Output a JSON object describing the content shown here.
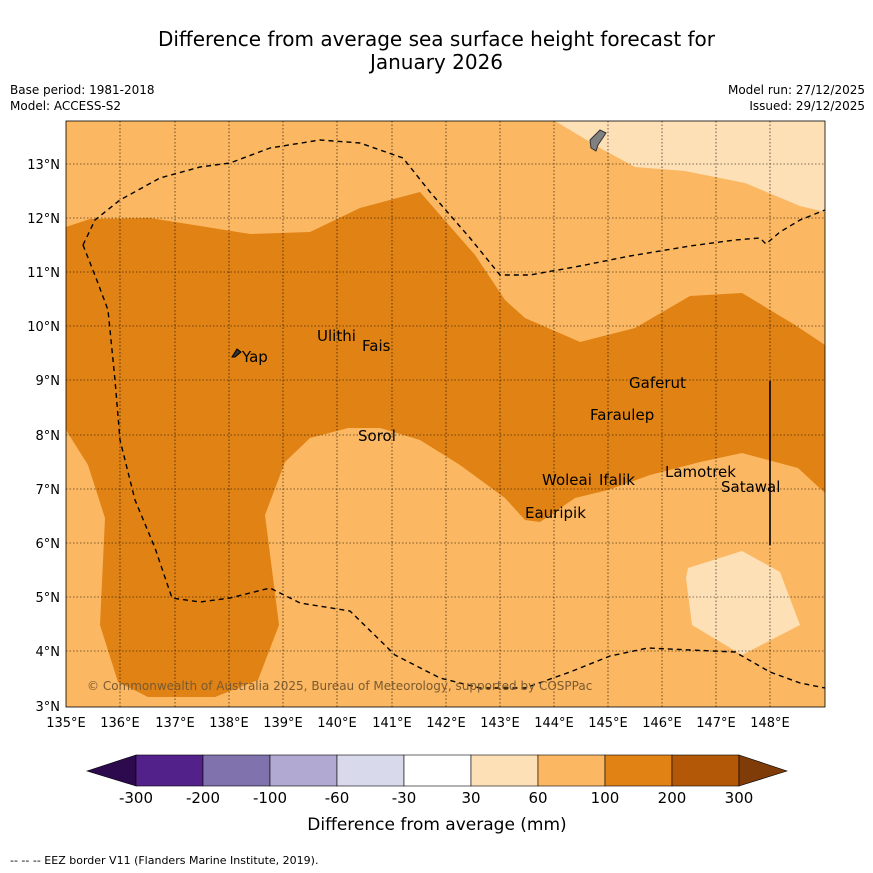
{
  "title_line1": "Difference from average sea surface height forecast for",
  "title_line2": "January 2026",
  "base_period": "Base period: 1981-2018",
  "model": "Model: ACCESS-S2",
  "model_run": "Model run: 27/12/2025",
  "issued": "Issued: 29/12/2025",
  "copyright": "© Commonwealth of Australia 2025, Bureau of Meteorology, supported by COSPPac",
  "footnote": "--  --  -- EEZ border V11 (Flanders Marine Institute, 2019).",
  "lat_labels": [
    "13°N",
    "12°N",
    "11°N",
    "10°N",
    "9°N",
    "8°N",
    "7°N",
    "6°N",
    "5°N",
    "4°N",
    "3°N"
  ],
  "lon_labels": [
    "135°E",
    "136°E",
    "137°E",
    "138°E",
    "139°E",
    "140°E",
    "141°E",
    "142°E",
    "143°E",
    "144°E",
    "145°E",
    "146°E",
    "147°E",
    "148°E"
  ],
  "places": [
    "Yap",
    "Ulithi",
    "Fais",
    "Gaferut",
    "Faraulep",
    "Sorol",
    "Woleai",
    "Ifalik",
    "Lamotrek",
    "Satawal",
    "Eauripik"
  ],
  "colorbar": {
    "title": "Difference from average (mm)",
    "tick_labels": [
      "-300",
      "-200",
      "-100",
      "-60",
      "-30",
      "30",
      "60",
      "100",
      "200",
      "300"
    ],
    "colors": [
      "#2d0a4e",
      "#53218a",
      "#7f72ad",
      "#b1a9d2",
      "#d9d9ec",
      "#ffffff",
      "#fee0b6",
      "#fbb761",
      "#e08214",
      "#b35806",
      "#7f3b08"
    ]
  },
  "colors": {
    "level_60_100": "#fbb761",
    "level_100_200": "#e08214",
    "level_30_60": "#fee0b6"
  }
}
